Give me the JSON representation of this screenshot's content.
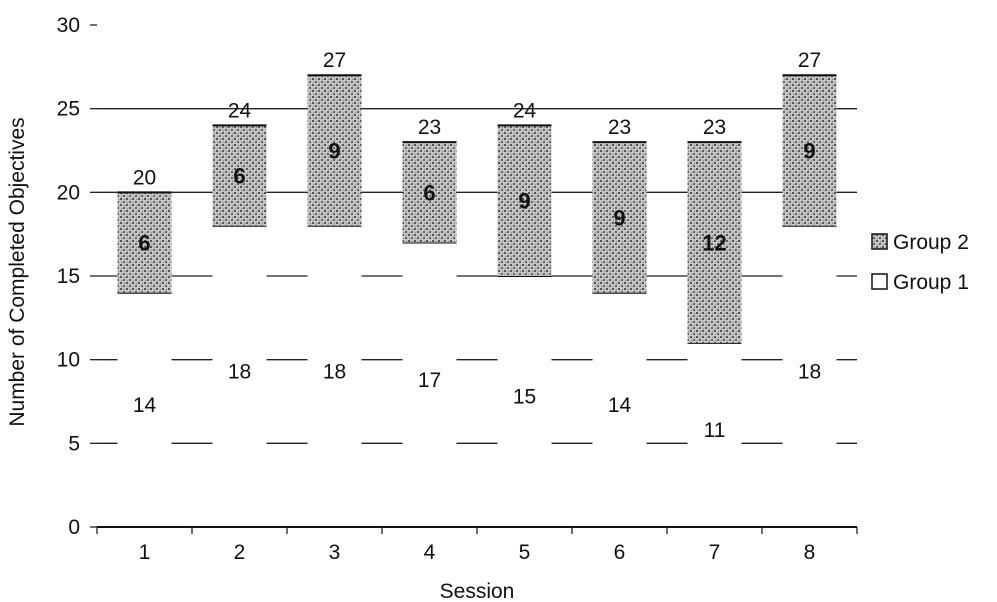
{
  "chart_data": {
    "type": "bar",
    "stacked": true,
    "xlabel": "Session",
    "ylabel": "Number of Completed Objectives",
    "categories": [
      "1",
      "2",
      "3",
      "4",
      "5",
      "6",
      "7",
      "8"
    ],
    "ylim": [
      0,
      30
    ],
    "yticks": [
      "0",
      "5",
      "10",
      "15",
      "20",
      "25",
      "30"
    ],
    "grid": true,
    "legend_position": "right",
    "series": [
      {
        "name": "Group 1",
        "values": [
          14,
          18,
          18,
          17,
          15,
          14,
          11,
          18
        ],
        "color": "#ffffff"
      },
      {
        "name": "Group 2",
        "values": [
          6,
          6,
          9,
          6,
          9,
          9,
          12,
          9
        ],
        "color": "#9a9a9a"
      }
    ],
    "group1_labels": [
      "14",
      "18",
      "18",
      "17",
      "15",
      "14",
      "11",
      "18"
    ],
    "group2_labels": [
      "6",
      "6",
      "9",
      "6",
      "9",
      "9",
      "12",
      "9"
    ],
    "total_labels": [
      "20",
      "24",
      "27",
      "23",
      "24",
      "23",
      "23",
      "27"
    ]
  }
}
